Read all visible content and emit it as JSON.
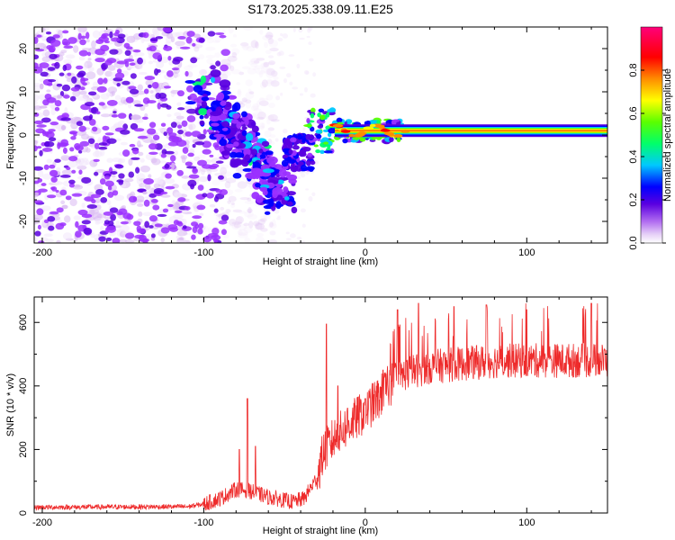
{
  "figure": {
    "title": "S173.2025.338.09.11.E25"
  },
  "chart_data": [
    {
      "type": "heatmap",
      "id": "spectrogram",
      "xlabel": "Height of straight line (km)",
      "ylabel": "Frequency (Hz)",
      "xlim": [
        -205,
        150
      ],
      "ylim": [
        -25,
        25
      ],
      "xticks": [
        -200,
        -100,
        0,
        100
      ],
      "yticks": [
        -20,
        -10,
        0,
        10,
        20
      ],
      "colorbar": {
        "label": "Normalized spectral amplitude",
        "range": [
          0,
          1
        ],
        "ticks": [
          "0.0",
          "0.2",
          "0.4",
          "0.6",
          "0.8"
        ],
        "colormap": [
          "#ffffff",
          "#d9b8f2",
          "#9b30ff",
          "#5a00e0",
          "#0000ff",
          "#00c8ff",
          "#00ff6a",
          "#5aff00",
          "#ffff00",
          "#ff8c00",
          "#ff0000",
          "#ff007a"
        ]
      },
      "features": {
        "noise_region_x": [
          -205,
          -95
        ],
        "diagonal_start": {
          "x": -100,
          "y": 10
        },
        "diagonal_end": {
          "x": -50,
          "y": -15
        },
        "steady_line_start_x": -30,
        "steady_frequency_hz": 1.0
      }
    },
    {
      "type": "line",
      "id": "snr",
      "xlabel": "Height of straight line (km)",
      "ylabel": "SNR (10 * v/v)",
      "xlim": [
        -205,
        150
      ],
      "ylim": [
        0,
        680
      ],
      "xticks": [
        -200,
        -100,
        0,
        100
      ],
      "yticks": [
        0,
        200,
        400,
        600
      ],
      "color": "#ee2b2b",
      "profile": [
        {
          "x": -205,
          "y": 18
        },
        {
          "x": -110,
          "y": 20
        },
        {
          "x": -100,
          "y": 28
        },
        {
          "x": -90,
          "y": 45
        },
        {
          "x": -80,
          "y": 75
        },
        {
          "x": -72,
          "y": 70
        },
        {
          "x": -60,
          "y": 50
        },
        {
          "x": -45,
          "y": 35
        },
        {
          "x": -38,
          "y": 45
        },
        {
          "x": -30,
          "y": 110
        },
        {
          "x": -26,
          "y": 190
        },
        {
          "x": -20,
          "y": 230
        },
        {
          "x": -10,
          "y": 280
        },
        {
          "x": 0,
          "y": 320
        },
        {
          "x": 8,
          "y": 360
        },
        {
          "x": 15,
          "y": 400
        },
        {
          "x": 25,
          "y": 440
        },
        {
          "x": 40,
          "y": 460
        },
        {
          "x": 60,
          "y": 470
        },
        {
          "x": 80,
          "y": 478
        },
        {
          "x": 100,
          "y": 480
        },
        {
          "x": 150,
          "y": 480
        }
      ],
      "peaks": [
        {
          "x": -73,
          "y": 360
        },
        {
          "x": -78,
          "y": 200
        },
        {
          "x": -68,
          "y": 210
        },
        {
          "x": -24,
          "y": 595
        },
        {
          "x": -17,
          "y": 400
        },
        {
          "x": -11,
          "y": 330
        },
        {
          "x": 0,
          "y": 360
        },
        {
          "x": 11,
          "y": 450
        },
        {
          "x": 20,
          "y": 640
        },
        {
          "x": 33,
          "y": 660
        },
        {
          "x": 55,
          "y": 650
        },
        {
          "x": 75,
          "y": 655
        },
        {
          "x": 100,
          "y": 640
        },
        {
          "x": 140,
          "y": 660
        }
      ]
    }
  ]
}
